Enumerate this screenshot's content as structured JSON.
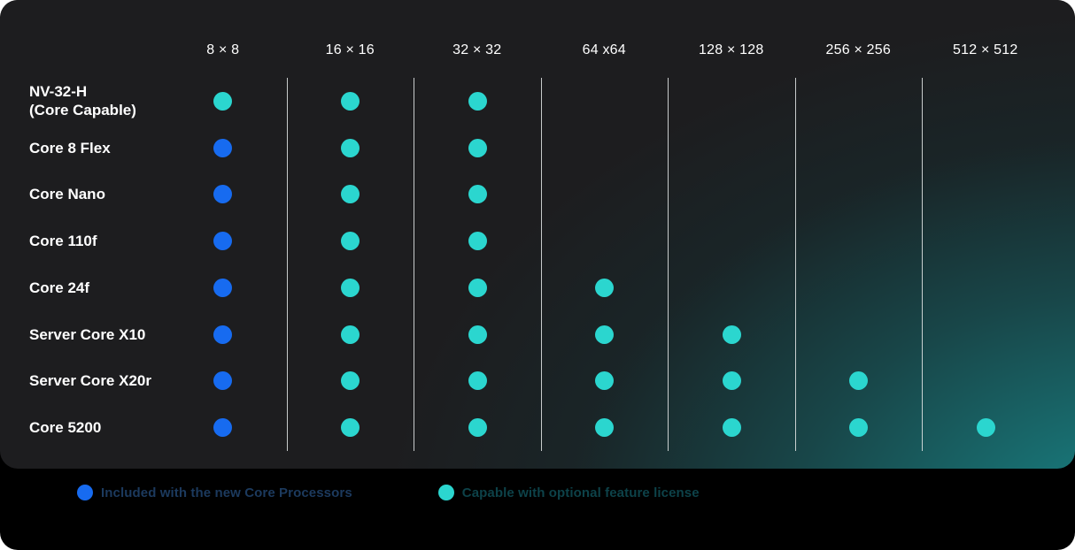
{
  "chart_data": {
    "type": "table",
    "columns": [
      "8 × 8",
      "16 × 16",
      "32 × 32",
      "64 x64",
      "128 × 128",
      "256 × 256",
      "512 × 512"
    ],
    "rows": [
      {
        "label": "NV-32-H",
        "sublabel": "(Core Capable)",
        "cells": [
          "capable",
          "capable",
          "capable",
          null,
          null,
          null,
          null
        ]
      },
      {
        "label": "Core 8 Flex",
        "cells": [
          "included",
          "capable",
          "capable",
          null,
          null,
          null,
          null
        ]
      },
      {
        "label": "Core Nano",
        "cells": [
          "included",
          "capable",
          "capable",
          null,
          null,
          null,
          null
        ]
      },
      {
        "label": "Core 110f",
        "cells": [
          "included",
          "capable",
          "capable",
          null,
          null,
          null,
          null
        ]
      },
      {
        "label": "Core 24f",
        "cells": [
          "included",
          "capable",
          "capable",
          "capable",
          null,
          null,
          null
        ]
      },
      {
        "label": "Server Core X10",
        "cells": [
          "included",
          "capable",
          "capable",
          "capable",
          "capable",
          null,
          null
        ]
      },
      {
        "label": "Server Core X20r",
        "cells": [
          "included",
          "capable",
          "capable",
          "capable",
          "capable",
          "capable",
          null
        ]
      },
      {
        "label": "Core 5200",
        "cells": [
          "included",
          "capable",
          "capable",
          "capable",
          "capable",
          "capable",
          "capable"
        ]
      }
    ],
    "legend": [
      {
        "type": "included",
        "label": "Included with the new Core Processors"
      },
      {
        "type": "capable",
        "label": "Capable with optional feature license"
      }
    ]
  },
  "colors": {
    "included": "#176BF0",
    "capable": "#2BD6CF",
    "included_text": "#1C3A5E",
    "capable_text": "#0D4249",
    "card_bg": "#000000",
    "panel_bg": "#1D1D1F",
    "glow": "#157A7C",
    "divider": "#D2D5D5",
    "header_text": "#FFFFFF"
  }
}
